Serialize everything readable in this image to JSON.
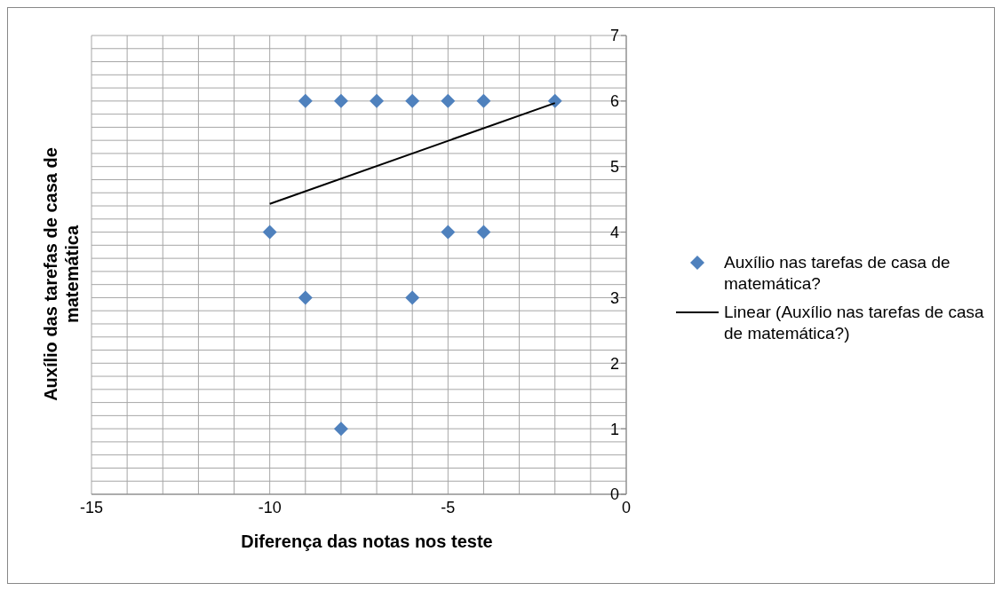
{
  "chart_data": {
    "type": "scatter",
    "xlabel": "Diferença das notas nos teste",
    "ylabel": "Auxílio das tarefas de casa de matemática",
    "series": [
      {
        "name": "Auxílio nas tarefas de casa de matemática?",
        "type": "scatter",
        "color": "#4f81bd",
        "marker": "diamond",
        "x": [
          -10,
          -9,
          -8,
          -7,
          -6,
          -5,
          -4,
          -2,
          -9,
          -6,
          -5,
          -4,
          -8
        ],
        "values": [
          4,
          6,
          6,
          6,
          6,
          6,
          6,
          6,
          3,
          3,
          4,
          4,
          1
        ]
      },
      {
        "name": "Linear (Auxílio nas tarefas de casa de matemática?)",
        "type": "line",
        "color": "#000000",
        "marker": "none",
        "x": [
          -10,
          -2
        ],
        "values": [
          4.43,
          5.97
        ]
      }
    ],
    "xlim": [
      -15,
      0
    ],
    "xticks": [
      -15,
      {
        "value": -14,
        "label": null
      },
      {
        "value": -13,
        "label": null
      },
      {
        "value": -12,
        "label": null
      },
      {
        "value": -11,
        "label": null
      },
      -10,
      {
        "value": -9,
        "label": null
      },
      {
        "value": -8,
        "label": null
      },
      {
        "value": -7,
        "label": null
      },
      {
        "value": -6,
        "label": null
      },
      -5,
      {
        "value": -4,
        "label": null
      },
      {
        "value": -3,
        "label": null
      },
      {
        "value": -2,
        "label": null
      },
      {
        "value": -1,
        "label": null
      },
      0
    ],
    "ylim": [
      0,
      7
    ],
    "yticks": [
      0,
      1,
      2,
      3,
      4,
      5,
      6,
      7
    ],
    "grid": true,
    "legend": "right"
  }
}
